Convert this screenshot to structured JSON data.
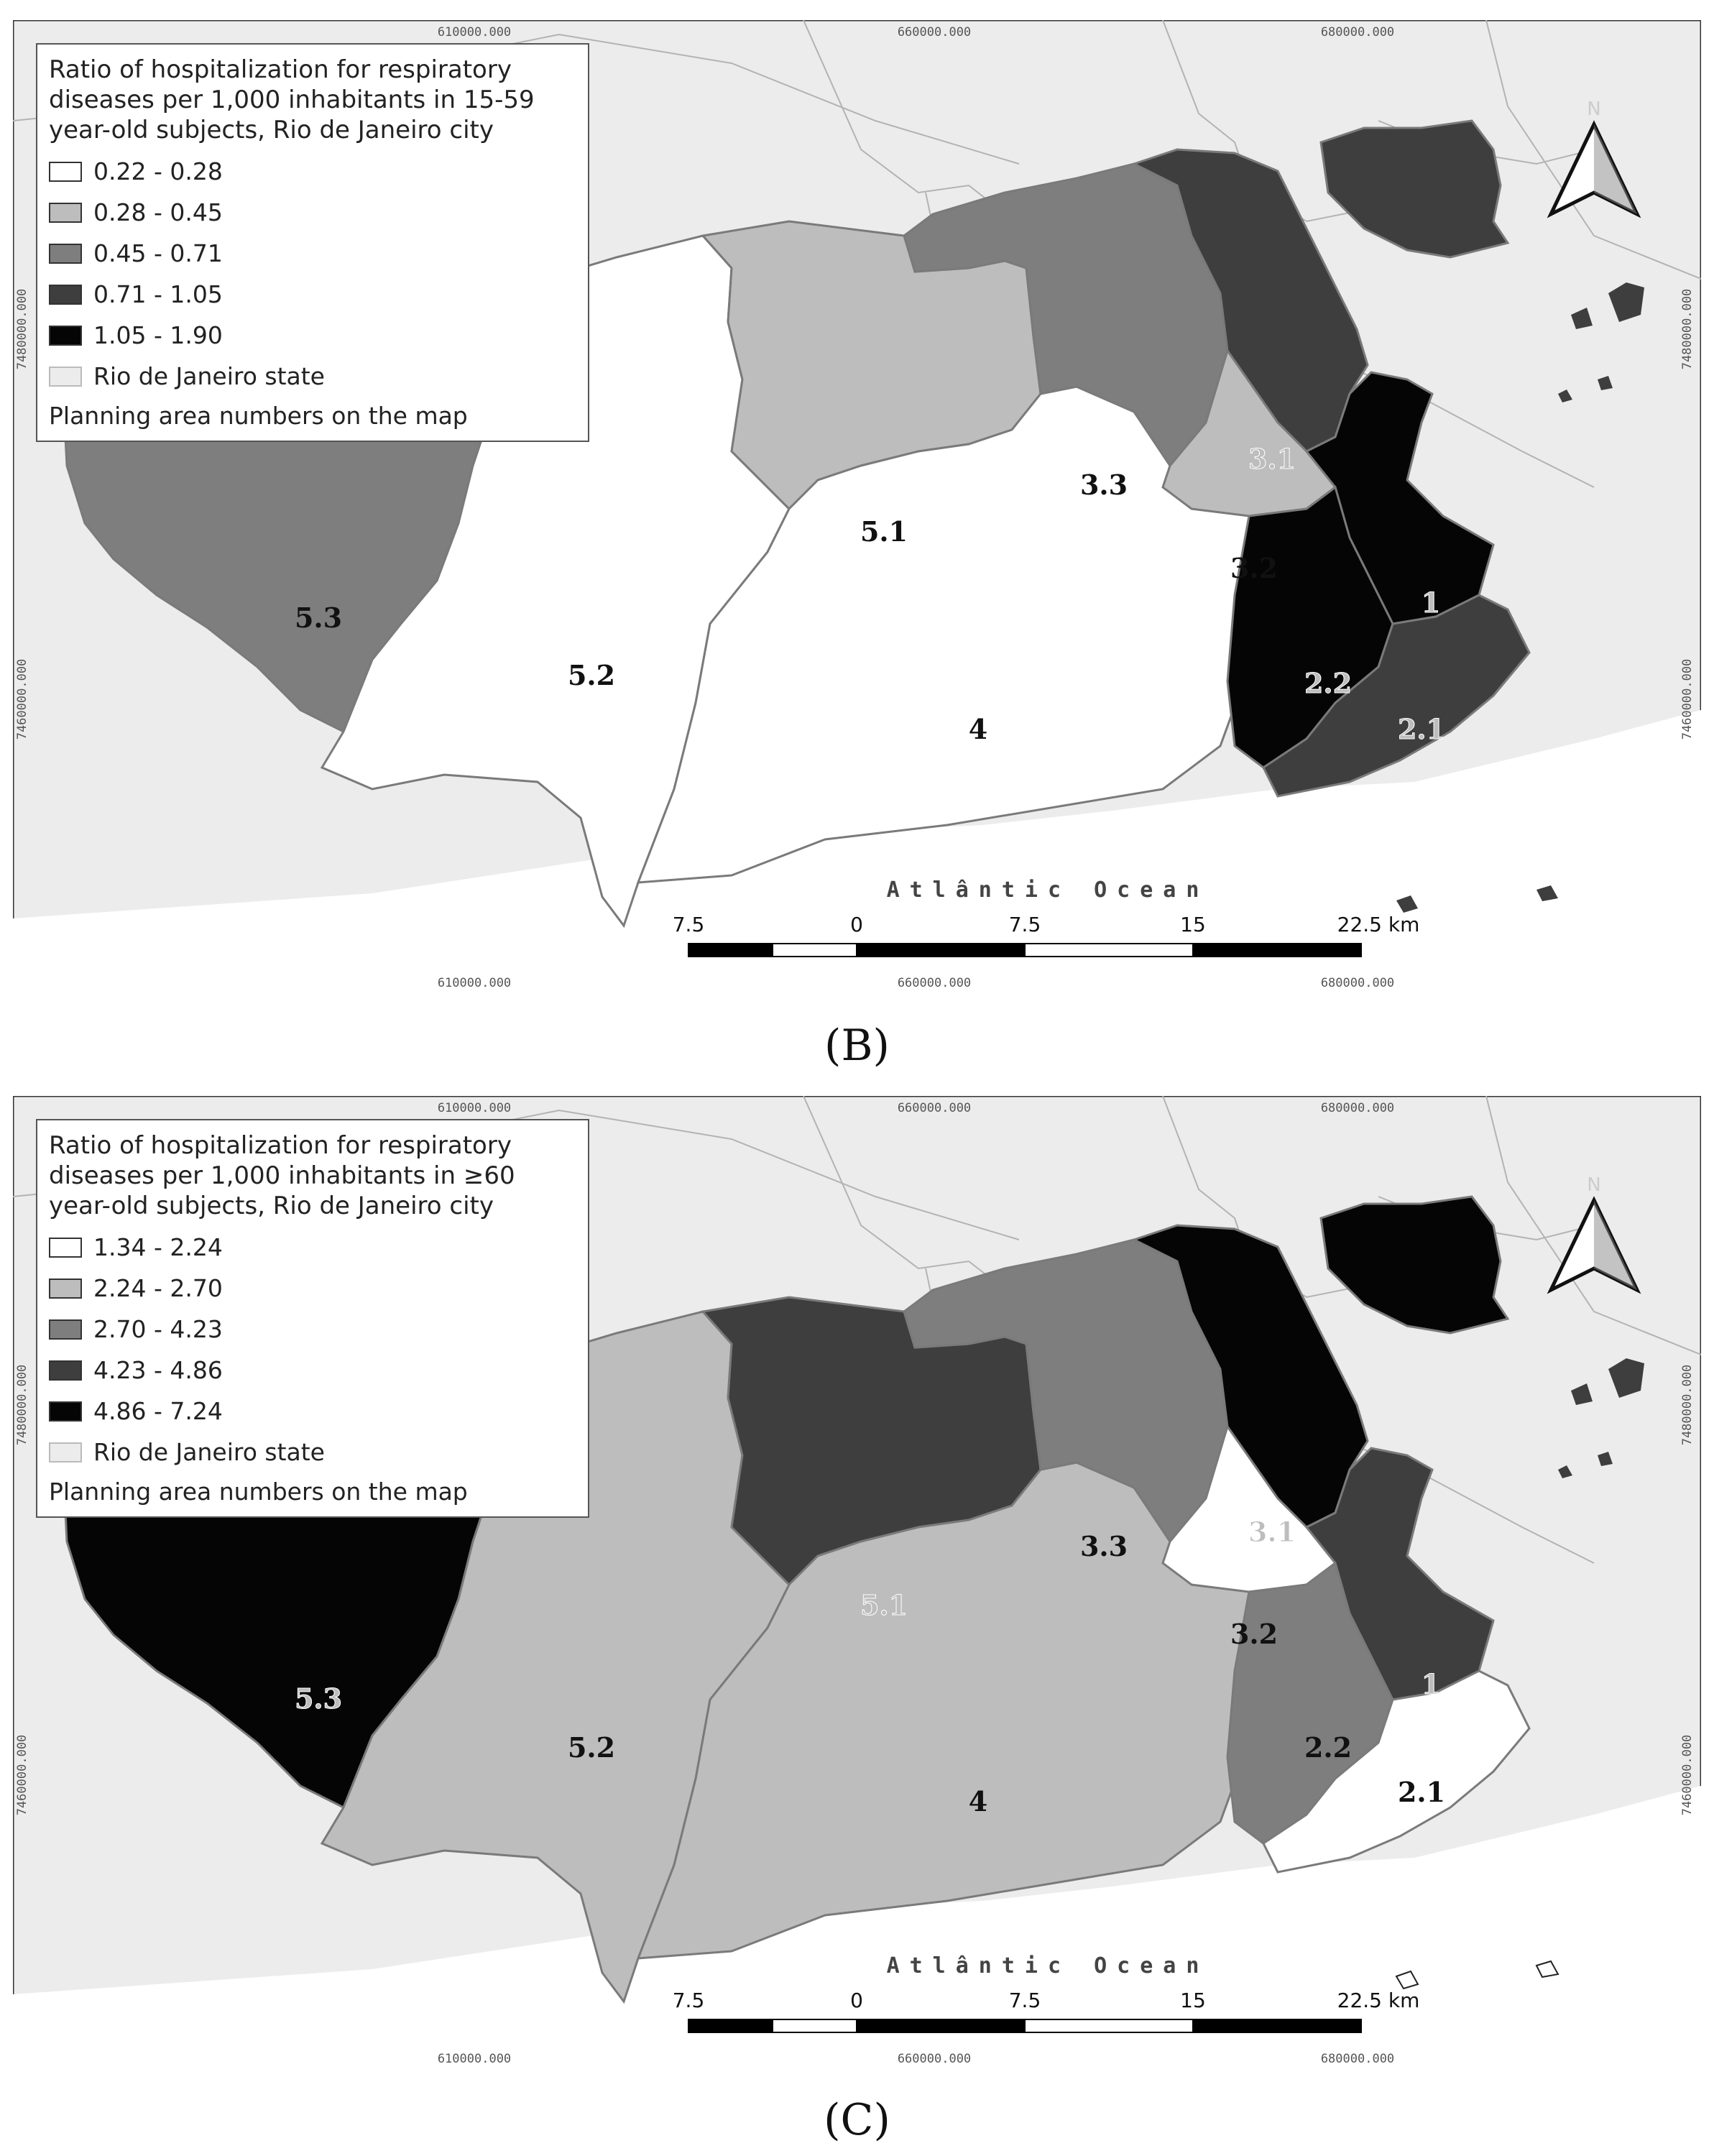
{
  "colors": {
    "state_bg": "#ececec",
    "city_outline": "#7a7a7a",
    "class_1": "#ffffff",
    "class_2": "#bdbdbd",
    "class_3": "#7e7e7e",
    "class_4": "#3e3e3e",
    "class_5": "#050505"
  },
  "coords": {
    "top": [
      "610000.000",
      "660000.000",
      "680000.000"
    ],
    "bottom": [
      "610000.000",
      "660000.000",
      "680000.000"
    ],
    "side": [
      "7480000.000",
      "7460000.000"
    ]
  },
  "scale": {
    "labels": [
      "7.5",
      "0",
      "7.5",
      "15",
      "22.5 km"
    ]
  },
  "ocean_label": "Atlântic Ocean",
  "north_letter": "N",
  "panels": [
    {
      "id": "B",
      "label": "(B)",
      "legend": {
        "title": "Ratio of hospitalization for respiratory diseases per 1,000 inhabitants in 15-59 year-old subjects, Rio de Janeiro city",
        "classes": [
          "0.22 - 0.28",
          "0.28 - 0.45",
          "0.45 - 0.71",
          "0.71 - 1.05",
          "1.05 - 1.90"
        ],
        "state_label": "Rio de Janeiro state",
        "note": "Planning area numbers on the map"
      },
      "areas": {
        "a53": {
          "label": "5.3",
          "class": 3
        },
        "a52": {
          "label": "5.2",
          "class": 1
        },
        "a51": {
          "label": "5.1",
          "class": 2
        },
        "a4": {
          "label": "4",
          "class": 1
        },
        "a33": {
          "label": "3.3",
          "class": 3
        },
        "a31": {
          "label": "3.1",
          "class": 4
        },
        "a32": {
          "label": "3.2",
          "class": 2
        },
        "a1": {
          "label": "1",
          "class": 5
        },
        "a22": {
          "label": "2.2",
          "class": 5
        },
        "a21": {
          "label": "2.1",
          "class": 4
        },
        "gov": {
          "label": "",
          "class": 4
        }
      }
    },
    {
      "id": "C",
      "label": "(C)",
      "legend": {
        "title": "Ratio of hospitalization for respiratory diseases per 1,000 inhabitants in ≥60 year-old subjects, Rio de Janeiro city",
        "classes": [
          "1.34 - 2.24",
          "2.24 - 2.70",
          "2.70 - 4.23",
          "4.23 - 4.86",
          "4.86 - 7.24"
        ],
        "state_label": "Rio de Janeiro state",
        "note": "Planning area numbers on the map"
      },
      "areas": {
        "a53": {
          "label": "5.3",
          "class": 5
        },
        "a52": {
          "label": "5.2",
          "class": 2
        },
        "a51": {
          "label": "5.1",
          "class": 4
        },
        "a4": {
          "label": "4",
          "class": 2
        },
        "a33": {
          "label": "3.3",
          "class": 3
        },
        "a31": {
          "label": "3.1",
          "class": 5
        },
        "a32": {
          "label": "3.2",
          "class": 1
        },
        "a1": {
          "label": "1",
          "class": 4
        },
        "a22": {
          "label": "2.2",
          "class": 3
        },
        "a21": {
          "label": "2.1",
          "class": 1
        },
        "gov": {
          "label": "",
          "class": 5
        }
      }
    }
  ]
}
